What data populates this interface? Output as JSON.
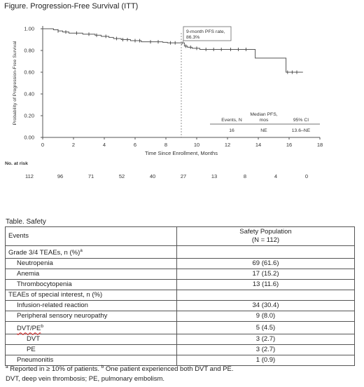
{
  "figure_title": "Figure. Progression-Free Survival (ITT)",
  "chart_data": {
    "type": "line",
    "title": "Figure. Progression-Free Survival (ITT)",
    "xlabel": "Time Since Enrollment, Months",
    "ylabel": "Probability of Progression-Free Survival",
    "xlim": [
      0,
      18
    ],
    "ylim": [
      0,
      1
    ],
    "x_ticks": [
      0,
      2,
      4,
      6,
      8,
      10,
      12,
      14,
      16,
      18
    ],
    "y_ticks": [
      0.0,
      0.2,
      0.4,
      0.6,
      0.8,
      1.0
    ],
    "y_tick_labels": [
      "0.00",
      "0.20",
      "0.40",
      "0.60",
      "0.80",
      "1.00"
    ],
    "grid": false,
    "series": [
      {
        "steps": [
          [
            0,
            1.0
          ],
          [
            0.7,
            0.99
          ],
          [
            1.0,
            0.98
          ],
          [
            1.3,
            0.97
          ],
          [
            1.7,
            0.96
          ],
          [
            2.6,
            0.95
          ],
          [
            3.4,
            0.94
          ],
          [
            3.8,
            0.93
          ],
          [
            4.3,
            0.92
          ],
          [
            4.6,
            0.91
          ],
          [
            5.1,
            0.9
          ],
          [
            5.7,
            0.89
          ],
          [
            6.4,
            0.88
          ],
          [
            7.8,
            0.875
          ],
          [
            8.1,
            0.87
          ],
          [
            9.2,
            0.84
          ],
          [
            9.4,
            0.83
          ],
          [
            9.7,
            0.82
          ],
          [
            10.2,
            0.81
          ],
          [
            13.8,
            0.73
          ],
          [
            15.8,
            0.6
          ],
          [
            16.9,
            0.6
          ]
        ],
        "censor_x": [
          1.0,
          1.5,
          2.2,
          3.0,
          3.5,
          4.1,
          4.8,
          5.2,
          5.5,
          6.0,
          6.3,
          7.0,
          7.5,
          8.3,
          8.6,
          9.3,
          9.6,
          10.0,
          10.6,
          11.1,
          11.6,
          12.2,
          12.7,
          13.2,
          15.9,
          16.2,
          16.5
        ]
      }
    ],
    "reference_line": {
      "x": 9,
      "annotation": "9-month PFS rate, 86.3%"
    },
    "inset_table": {
      "headers": [
        "Events, N",
        "Median PFS, mos",
        "95% CI"
      ],
      "values": [
        "16",
        "NE",
        "13.6–NE"
      ]
    },
    "at_risk": {
      "label": "No. at risk",
      "x": [
        0,
        2,
        4,
        6,
        8,
        10,
        12,
        14,
        16,
        18
      ],
      "values": [
        "112",
        "96",
        "71",
        "52",
        "40",
        "27",
        "13",
        "8",
        "4",
        "0"
      ]
    }
  },
  "safety_table": {
    "title": "Table. Safety",
    "header_events": "Events",
    "header_population": "Safety Population",
    "header_n": "(N = 112)",
    "rows": [
      {
        "label": "Grade 3/4 TEAEs, n (%)",
        "sup": "a",
        "value": "",
        "indent": 0
      },
      {
        "label": "Neutropenia",
        "sup": "",
        "value": "69 (61.6)",
        "indent": 1
      },
      {
        "label": "Anemia",
        "sup": "",
        "value": "17 (15.2)",
        "indent": 1
      },
      {
        "label": "Thrombocytopenia",
        "sup": "",
        "value": "13 (11.6)",
        "indent": 1
      },
      {
        "label": "TEAEs of special interest, n (%)",
        "sup": "",
        "value": "",
        "indent": 0
      },
      {
        "label": "Infusion-related reaction",
        "sup": "",
        "value": "34 (30.4)",
        "indent": 1
      },
      {
        "label": "Peripheral sensory neuropathy",
        "sup": "",
        "value": "9 (8.0)",
        "indent": 1
      },
      {
        "label": "DVT/PE",
        "sup": "b",
        "value": "5 (4.5)",
        "indent": 1
      },
      {
        "label": "DVT",
        "sup": "",
        "value": "3 (2.7)",
        "indent": 2
      },
      {
        "label": "PE",
        "sup": "",
        "value": "3 (2.7)",
        "indent": 2
      },
      {
        "label": "Pneumonitis",
        "sup": "",
        "value": "1 (0.9)",
        "indent": 1
      }
    ]
  },
  "footnotes": {
    "a_mark": "a",
    "a_text": " Reported in ≥ 10% of patients. ",
    "b_mark": "b",
    "b_text": " One patient experienced both DVT and PE.",
    "abbrev": "DVT, deep vein thrombosis; PE, pulmonary embolism."
  }
}
